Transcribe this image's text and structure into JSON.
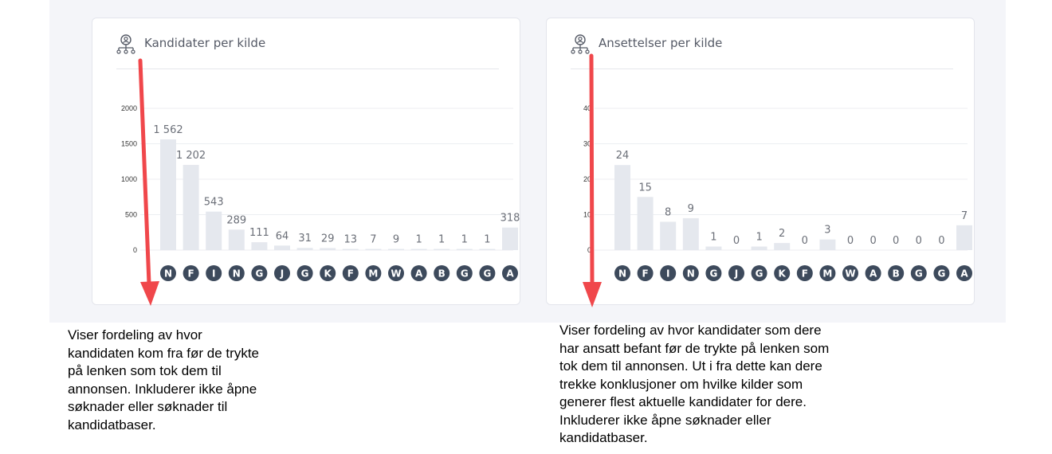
{
  "cards": [
    {
      "title": "Kandidater per kilde",
      "icon": "candidate-source-icon"
    },
    {
      "title": "Ansettelser per kilde",
      "icon": "candidate-source-icon"
    }
  ],
  "chart_data": [
    {
      "type": "bar",
      "title": "Kandidater per kilde",
      "categories": [
        "N",
        "F",
        "I",
        "N",
        "G",
        "J",
        "G",
        "K",
        "F",
        "M",
        "W",
        "A",
        "B",
        "G",
        "G",
        "A"
      ],
      "values": [
        1562,
        1202,
        543,
        289,
        111,
        64,
        31,
        29,
        13,
        7,
        9,
        1,
        1,
        1,
        1,
        318
      ],
      "value_labels": [
        "1 562",
        "1 202",
        "543",
        "289",
        "111",
        "64",
        "31",
        "29",
        "13",
        "7",
        "9",
        "1",
        "1",
        "1",
        "1",
        "318"
      ],
      "yticks": [
        "2000",
        "1500",
        "1000",
        "500",
        "0"
      ],
      "ylim": [
        0,
        2000
      ],
      "grid": true,
      "bar_color": "#e5e8ee",
      "badge_color": "#3d4a5c"
    },
    {
      "type": "bar",
      "title": "Ansettelser per kilde",
      "categories": [
        "N",
        "F",
        "I",
        "N",
        "G",
        "J",
        "G",
        "K",
        "F",
        "M",
        "W",
        "A",
        "B",
        "G",
        "G",
        "A"
      ],
      "values": [
        24,
        15,
        8,
        9,
        1,
        0,
        1,
        2,
        0,
        3,
        0,
        0,
        0,
        0,
        0,
        7
      ],
      "value_labels": [
        "24",
        "15",
        "8",
        "9",
        "1",
        "0",
        "1",
        "2",
        "0",
        "3",
        "0",
        "0",
        "0",
        "0",
        "0",
        "7"
      ],
      "yticks": [
        "40",
        "30",
        "20",
        "10",
        "0"
      ],
      "ylim": [
        0,
        40
      ],
      "grid": true,
      "bar_color": "#e5e8ee",
      "badge_color": "#3d4a5c"
    }
  ],
  "annotations": [
    {
      "text": "Viser fordeling av hvor\nkandidaten kom fra før de trykte\npå lenken som tok dem til\nannonsen. Inkluderer ikke åpne\nsøknader eller søknader til\nkandidatbaser."
    },
    {
      "text": "Viser fordeling av hvor kandidater som dere\nhar ansatt befant før de trykte på lenken som\ntok dem til annonsen. Ut i fra dette kan dere\ntrekke konklusjoner om hvilke kilder som\ngenerer flest aktuelle kandidater for dere.\nInkluderer ikke åpne søknader eller\nkandidatbaser."
    }
  ],
  "colors": {
    "arrow": "#f0474b",
    "title": "#555a66",
    "label": "#6b6f78",
    "axis": "#333333"
  }
}
